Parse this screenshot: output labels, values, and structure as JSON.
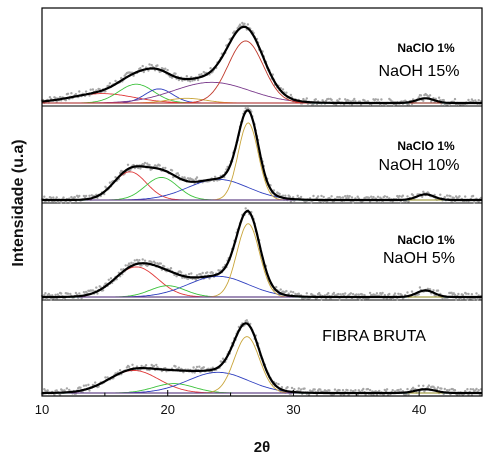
{
  "chart_data": {
    "type": "line",
    "xlabel": "2θ",
    "ylabel": "Intensidade (u.a)",
    "xlim": [
      10,
      45
    ],
    "x_ticks": [
      10,
      20,
      30,
      40
    ],
    "x_tick_labels": [
      "10",
      "20",
      "30",
      "40"
    ],
    "stacked_panels": true,
    "colors": {
      "fit": "#000000",
      "data": "#a6a6a6",
      "baseline": "#1f8a8a",
      "peaks": [
        "#e03a3a",
        "#3cc23c",
        "#2f3fbf",
        "#c9a53a",
        "#7a3a8c",
        "#c0392b"
      ]
    },
    "panels": [
      {
        "label_line1": "NaClO 1%",
        "label_line2": "NaOH 15%",
        "peaks": [
          {
            "center": 14.8,
            "height": 0.1,
            "width": 2.5
          },
          {
            "center": 17.5,
            "height": 0.2,
            "width": 1.4
          },
          {
            "center": 19.3,
            "height": 0.15,
            "width": 1.1
          },
          {
            "center": 21.5,
            "height": 0.05,
            "width": 1.5
          },
          {
            "center": 23.5,
            "height": 0.22,
            "width": 3.0
          },
          {
            "center": 26.2,
            "height": 0.66,
            "width": 1.4
          },
          {
            "center": 40.5,
            "height": 0.05,
            "width": 0.7
          }
        ]
      },
      {
        "label_line1": "NaClO 1%",
        "label_line2": "NaOH 10%",
        "peaks": [
          {
            "center": 17.0,
            "height": 0.3,
            "width": 1.3
          },
          {
            "center": 19.5,
            "height": 0.24,
            "width": 1.3
          },
          {
            "center": 24.0,
            "height": 0.22,
            "width": 2.4
          },
          {
            "center": 26.4,
            "height": 0.82,
            "width": 0.8
          },
          {
            "center": 40.5,
            "height": 0.06,
            "width": 0.7
          }
        ]
      },
      {
        "label_line1": "NaClO 1%",
        "label_line2": "NaOH 5%",
        "peaks": [
          {
            "center": 17.5,
            "height": 0.32,
            "width": 1.7
          },
          {
            "center": 20.0,
            "height": 0.12,
            "width": 1.4
          },
          {
            "center": 24.0,
            "height": 0.22,
            "width": 2.4
          },
          {
            "center": 26.4,
            "height": 0.78,
            "width": 0.9
          },
          {
            "center": 40.5,
            "height": 0.07,
            "width": 0.7
          }
        ]
      },
      {
        "label_line1": "",
        "label_line2": "FIBRA BRUTA",
        "peaks": [
          {
            "center": 17.3,
            "height": 0.24,
            "width": 2.0
          },
          {
            "center": 20.5,
            "height": 0.1,
            "width": 1.6
          },
          {
            "center": 24.0,
            "height": 0.22,
            "width": 2.4
          },
          {
            "center": 26.3,
            "height": 0.6,
            "width": 1.0
          },
          {
            "center": 40.5,
            "height": 0.04,
            "width": 0.8
          }
        ]
      }
    ]
  }
}
